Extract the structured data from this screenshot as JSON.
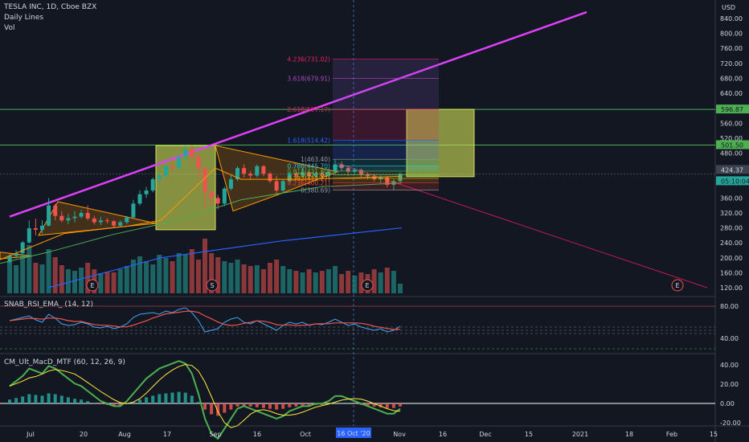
{
  "header": {
    "symbol": "TESLA INC, 1D, Cboe BZX",
    "line2": "Daily Lines",
    "line3": "Vol",
    "rsi_label": "SNAB_RSI_EMA_ (14, 12)",
    "macd_label": "CM_Ult_MacD_MTF (60, 12, 26, 9)"
  },
  "axes": {
    "currency": "USD",
    "price_ticks": [
      "840.00",
      "800.00",
      "760.00",
      "720.00",
      "680.00",
      "640.00",
      "600.00",
      "560.00",
      "520.00",
      "480.00",
      "440.00",
      "400.00",
      "360.00",
      "320.00",
      "280.00",
      "240.00",
      "200.00",
      "160.00",
      "120.00"
    ],
    "rsi_ticks": [
      "80.00",
      "40.00"
    ],
    "macd_ticks": [
      "40.00",
      "20.00",
      "0.00",
      "-20.00"
    ],
    "time_ticks": [
      "Jul",
      "20",
      "Aug",
      "17",
      "Sep",
      "16",
      "Oct",
      "Nov",
      "16",
      "Dec",
      "15",
      "2021",
      "18",
      "Feb",
      "15"
    ],
    "crosshair_time": "16 Oct '20"
  },
  "price_tags": [
    {
      "text": "596.87",
      "bg": "#4caf50",
      "color": "#131722"
    },
    {
      "text": "501.50",
      "bg": "#4caf50",
      "color": "#131722"
    },
    {
      "text": "424.37",
      "bg": "#3d4451",
      "color": "#d1d4dc"
    },
    {
      "text": "05:10:04",
      "bg": "#26a69a",
      "color": "#131722"
    }
  ],
  "fib_labels": [
    {
      "text": "4.236(731.02)",
      "color": "#e91e63"
    },
    {
      "text": "3.618(679.91)",
      "color": "#ab47bc"
    },
    {
      "text": "2.618(597.17)",
      "color": "#e91e63"
    },
    {
      "text": "1.618(514.42)",
      "color": "#2962ff"
    },
    {
      "text": "1(463.40)",
      "color": "#9598a1"
    },
    {
      "text": "0.786(445.70)",
      "color": "#26c6da"
    },
    {
      "text": "0.618(431.80)",
      "color": "#4caf50"
    },
    {
      "text": "0.5(422.04)",
      "color": "#8bc34a"
    },
    {
      "text": "0.382(412.27)",
      "color": "#ff9800"
    },
    {
      "text": "0.236(400.21)",
      "color": "#f44336"
    },
    {
      "text": "0(380.69)",
      "color": "#9598a1"
    }
  ],
  "events": [
    {
      "label": "E"
    },
    {
      "label": "S"
    },
    {
      "label": "E"
    },
    {
      "label": "E"
    }
  ],
  "colors": {
    "background": "#131722",
    "up": "#26a69a",
    "down": "#ef5350",
    "trendline": "#e040fb",
    "triangle": "#ff9800",
    "yellow_box": "#d4e157"
  },
  "chart_data": {
    "type": "candlestick",
    "price_range": [
      100,
      855
    ],
    "candles": [
      {
        "d": 0,
        "o": 190,
        "h": 212,
        "c": 205,
        "l": 184
      },
      {
        "d": 1,
        "o": 205,
        "h": 220,
        "c": 212,
        "l": 198
      },
      {
        "d": 2,
        "o": 212,
        "h": 245,
        "c": 241,
        "l": 208
      },
      {
        "d": 3,
        "o": 241,
        "h": 300,
        "c": 279,
        "l": 238
      },
      {
        "d": 4,
        "o": 279,
        "h": 305,
        "c": 275,
        "l": 260
      },
      {
        "d": 5,
        "o": 275,
        "h": 300,
        "c": 286,
        "l": 265
      },
      {
        "d": 6,
        "o": 286,
        "h": 360,
        "c": 340,
        "l": 284
      },
      {
        "d": 7,
        "o": 340,
        "h": 345,
        "c": 312,
        "l": 300
      },
      {
        "d": 8,
        "o": 312,
        "h": 325,
        "c": 300,
        "l": 295
      },
      {
        "d": 9,
        "o": 300,
        "h": 318,
        "c": 306,
        "l": 290
      },
      {
        "d": 10,
        "o": 306,
        "h": 325,
        "c": 310,
        "l": 295
      },
      {
        "d": 11,
        "o": 310,
        "h": 328,
        "c": 320,
        "l": 305
      },
      {
        "d": 12,
        "o": 320,
        "h": 340,
        "c": 305,
        "l": 300
      },
      {
        "d": 13,
        "o": 305,
        "h": 312,
        "c": 295,
        "l": 289
      },
      {
        "d": 14,
        "o": 295,
        "h": 310,
        "c": 300,
        "l": 287
      },
      {
        "d": 15,
        "o": 300,
        "h": 306,
        "c": 298,
        "l": 292
      },
      {
        "d": 16,
        "o": 298,
        "h": 300,
        "c": 286,
        "l": 280
      },
      {
        "d": 17,
        "o": 286,
        "h": 300,
        "c": 295,
        "l": 283
      },
      {
        "d": 18,
        "o": 295,
        "h": 312,
        "c": 308,
        "l": 290
      },
      {
        "d": 19,
        "o": 308,
        "h": 355,
        "c": 345,
        "l": 306
      },
      {
        "d": 20,
        "o": 345,
        "h": 380,
        "c": 370,
        "l": 340
      },
      {
        "d": 21,
        "o": 370,
        "h": 390,
        "c": 380,
        "l": 360
      },
      {
        "d": 22,
        "o": 380,
        "h": 415,
        "c": 410,
        "l": 375
      },
      {
        "d": 23,
        "o": 410,
        "h": 430,
        "c": 420,
        "l": 400
      },
      {
        "d": 24,
        "o": 420,
        "h": 450,
        "c": 445,
        "l": 415
      },
      {
        "d": 25,
        "o": 445,
        "h": 460,
        "c": 440,
        "l": 432
      },
      {
        "d": 26,
        "o": 440,
        "h": 475,
        "c": 470,
        "l": 436
      },
      {
        "d": 27,
        "o": 470,
        "h": 500,
        "c": 490,
        "l": 462
      },
      {
        "d": 28,
        "o": 490,
        "h": 502,
        "c": 470,
        "l": 455
      },
      {
        "d": 29,
        "o": 470,
        "h": 480,
        "c": 440,
        "l": 410
      },
      {
        "d": 30,
        "o": 440,
        "h": 445,
        "c": 375,
        "l": 330
      },
      {
        "d": 31,
        "o": 375,
        "h": 380,
        "c": 360,
        "l": 340
      },
      {
        "d": 32,
        "o": 360,
        "h": 368,
        "c": 345,
        "l": 330
      },
      {
        "d": 33,
        "o": 345,
        "h": 390,
        "c": 385,
        "l": 338
      },
      {
        "d": 34,
        "o": 385,
        "h": 420,
        "c": 410,
        "l": 380
      },
      {
        "d": 35,
        "o": 410,
        "h": 445,
        "c": 440,
        "l": 405
      },
      {
        "d": 36,
        "o": 440,
        "h": 450,
        "c": 425,
        "l": 415
      },
      {
        "d": 37,
        "o": 425,
        "h": 432,
        "c": 420,
        "l": 410
      },
      {
        "d": 38,
        "o": 420,
        "h": 450,
        "c": 445,
        "l": 415
      },
      {
        "d": 39,
        "o": 445,
        "h": 448,
        "c": 425,
        "l": 418
      },
      {
        "d": 40,
        "o": 425,
        "h": 430,
        "c": 405,
        "l": 400
      },
      {
        "d": 41,
        "o": 405,
        "h": 420,
        "c": 380,
        "l": 372
      },
      {
        "d": 42,
        "o": 380,
        "h": 410,
        "c": 405,
        "l": 375
      },
      {
        "d": 43,
        "o": 405,
        "h": 430,
        "c": 425,
        "l": 400
      },
      {
        "d": 44,
        "o": 425,
        "h": 435,
        "c": 420,
        "l": 412
      },
      {
        "d": 45,
        "o": 420,
        "h": 440,
        "c": 428,
        "l": 415
      },
      {
        "d": 46,
        "o": 428,
        "h": 432,
        "c": 418,
        "l": 410
      },
      {
        "d": 47,
        "o": 418,
        "h": 430,
        "c": 425,
        "l": 412
      },
      {
        "d": 48,
        "o": 425,
        "h": 432,
        "c": 420,
        "l": 414
      },
      {
        "d": 49,
        "o": 420,
        "h": 438,
        "c": 430,
        "l": 416
      },
      {
        "d": 50,
        "o": 430,
        "h": 463,
        "c": 450,
        "l": 425
      },
      {
        "d": 51,
        "o": 450,
        "h": 458,
        "c": 440,
        "l": 432
      },
      {
        "d": 52,
        "o": 440,
        "h": 445,
        "c": 430,
        "l": 420
      },
      {
        "d": 53,
        "o": 430,
        "h": 440,
        "c": 435,
        "l": 424
      },
      {
        "d": 54,
        "o": 435,
        "h": 438,
        "c": 422,
        "l": 416
      },
      {
        "d": 55,
        "o": 422,
        "h": 428,
        "c": 418,
        "l": 410
      },
      {
        "d": 56,
        "o": 418,
        "h": 425,
        "c": 410,
        "l": 404
      },
      {
        "d": 57,
        "o": 410,
        "h": 420,
        "c": 415,
        "l": 400
      },
      {
        "d": 58,
        "o": 415,
        "h": 418,
        "c": 395,
        "l": 388
      },
      {
        "d": 59,
        "o": 395,
        "h": 410,
        "c": 405,
        "l": 381
      },
      {
        "d": 60,
        "o": 405,
        "h": 428,
        "c": 424,
        "l": 400
      }
    ],
    "volume": [
      40,
      35,
      48,
      60,
      38,
      36,
      55,
      45,
      35,
      30,
      28,
      32,
      38,
      30,
      25,
      27,
      26,
      30,
      34,
      42,
      46,
      40,
      36,
      48,
      44,
      40,
      50,
      48,
      55,
      42,
      68,
      50,
      45,
      40,
      38,
      42,
      36,
      34,
      35,
      30,
      38,
      42,
      34,
      30,
      28,
      26,
      30,
      26,
      28,
      30,
      34,
      24,
      28,
      22,
      26,
      24,
      30,
      26,
      32,
      28,
      12
    ],
    "rsi": [
      62,
      64,
      66,
      68,
      63,
      60,
      70,
      65,
      58,
      56,
      57,
      60,
      58,
      54,
      53,
      55,
      52,
      54,
      58,
      66,
      70,
      71,
      72,
      70,
      74,
      72,
      76,
      78,
      72,
      62,
      48,
      50,
      52,
      60,
      64,
      66,
      60,
      58,
      62,
      58,
      54,
      50,
      56,
      60,
      58,
      60,
      56,
      58,
      57,
      60,
      64,
      60,
      56,
      58,
      54,
      52,
      50,
      52,
      48,
      50,
      55
    ],
    "macd_hist": [
      5,
      7,
      9,
      12,
      11,
      10,
      13,
      12,
      10,
      8,
      6,
      5,
      3,
      1,
      -1,
      -2,
      -3,
      -3,
      -1,
      2,
      5,
      8,
      10,
      12,
      13,
      14,
      15,
      14,
      10,
      2,
      -8,
      -14,
      -16,
      -12,
      -8,
      -4,
      -3,
      -4,
      -5,
      -6,
      -7,
      -8,
      -7,
      -5,
      -4,
      -3,
      -3,
      -2,
      -2,
      -1,
      1,
      1,
      0,
      -1,
      -2,
      -3,
      -4,
      -5,
      -6,
      -6,
      -4
    ],
    "annotations": [
      "E",
      "S",
      "E",
      "E"
    ]
  }
}
